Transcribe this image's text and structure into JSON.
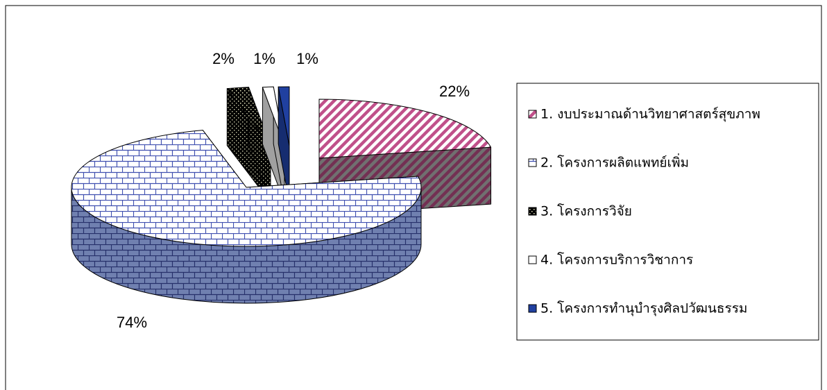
{
  "chart_data": {
    "type": "pie3d",
    "categories": [
      "1. งบประมาณด้านวิทยาศาสตร์สุขภาพ",
      "2. โครงการผลิตแพทย์เพิ่ม",
      "3. โครงการวิจัย",
      "4. โครงการบริการวิชาการ",
      "5. โครงการทำนุบำรุงศิลปวัฒนธรรม"
    ],
    "values": [
      22,
      74,
      2,
      1,
      1
    ],
    "value_labels": [
      "22%",
      "74%",
      "2%",
      "1%",
      "1%"
    ],
    "colors": [
      "#c0508a",
      "#4050b0",
      "#000000",
      "#ffffff",
      "#2040a0"
    ],
    "legend": "right"
  }
}
